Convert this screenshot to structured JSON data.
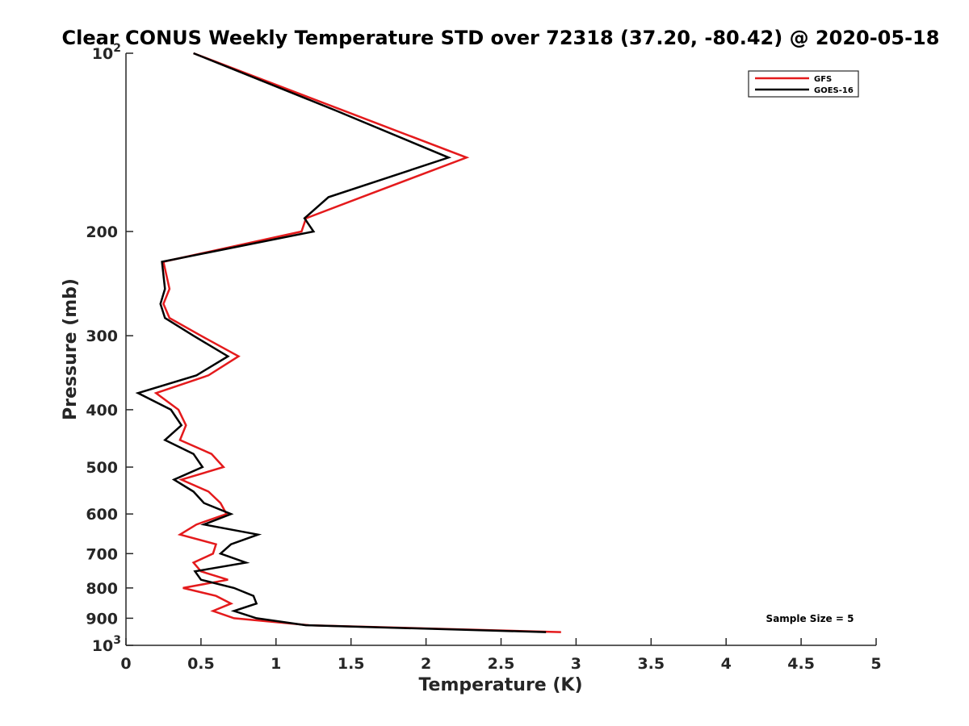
{
  "chart_data": {
    "type": "line",
    "title": "Clear CONUS Weekly Temperature STD over 72318 (37.20, -80.42) @ 2020-05-18",
    "xlabel": "Temperature (K)",
    "ylabel": "Pressure (mb)",
    "xlim": [
      0,
      5
    ],
    "ylim": [
      100,
      1000
    ],
    "y_scale": "log",
    "y_reversed": true,
    "x_ticks": [
      "0",
      "0.5",
      "1",
      "1.5",
      "2",
      "2.5",
      "3",
      "3.5",
      "4",
      "4.5",
      "5"
    ],
    "y_ticks": [
      {
        "value": 100,
        "base": "10",
        "exp": "2",
        "label": ""
      },
      {
        "value": 200,
        "label": "200"
      },
      {
        "value": 300,
        "label": "300"
      },
      {
        "value": 400,
        "label": "400"
      },
      {
        "value": 500,
        "label": "500"
      },
      {
        "value": 600,
        "label": "600"
      },
      {
        "value": 700,
        "label": "700"
      },
      {
        "value": 800,
        "label": "800"
      },
      {
        "value": 900,
        "label": "900"
      },
      {
        "value": 1000,
        "base": "10",
        "exp": "3",
        "label": ""
      }
    ],
    "grid": false,
    "legend_position": "top-right",
    "annotation": "Sample Size = 5",
    "series": [
      {
        "name": "GFS",
        "color": "#e41a1c",
        "points": [
          {
            "x": 0.45,
            "p": 100
          },
          {
            "x": 1.45,
            "p": 125
          },
          {
            "x": 2.27,
            "p": 150
          },
          {
            "x": 1.57,
            "p": 175
          },
          {
            "x": 1.2,
            "p": 190
          },
          {
            "x": 1.17,
            "p": 200
          },
          {
            "x": 0.25,
            "p": 225
          },
          {
            "x": 0.29,
            "p": 250
          },
          {
            "x": 0.25,
            "p": 265
          },
          {
            "x": 0.29,
            "p": 280
          },
          {
            "x": 0.5,
            "p": 300
          },
          {
            "x": 0.75,
            "p": 325
          },
          {
            "x": 0.55,
            "p": 350
          },
          {
            "x": 0.2,
            "p": 375
          },
          {
            "x": 0.35,
            "p": 400
          },
          {
            "x": 0.4,
            "p": 425
          },
          {
            "x": 0.36,
            "p": 450
          },
          {
            "x": 0.57,
            "p": 475
          },
          {
            "x": 0.65,
            "p": 500
          },
          {
            "x": 0.37,
            "p": 525
          },
          {
            "x": 0.55,
            "p": 550
          },
          {
            "x": 0.63,
            "p": 575
          },
          {
            "x": 0.67,
            "p": 600
          },
          {
            "x": 0.47,
            "p": 625
          },
          {
            "x": 0.36,
            "p": 650
          },
          {
            "x": 0.6,
            "p": 675
          },
          {
            "x": 0.58,
            "p": 700
          },
          {
            "x": 0.45,
            "p": 725
          },
          {
            "x": 0.5,
            "p": 750
          },
          {
            "x": 0.68,
            "p": 775
          },
          {
            "x": 0.38,
            "p": 800
          },
          {
            "x": 0.6,
            "p": 825
          },
          {
            "x": 0.7,
            "p": 850
          },
          {
            "x": 0.58,
            "p": 875
          },
          {
            "x": 0.72,
            "p": 900
          },
          {
            "x": 1.22,
            "p": 925
          },
          {
            "x": 2.9,
            "p": 950
          }
        ]
      },
      {
        "name": "GOES-16",
        "color": "#000000",
        "points": [
          {
            "x": 0.45,
            "p": 100
          },
          {
            "x": 1.4,
            "p": 125
          },
          {
            "x": 2.15,
            "p": 150
          },
          {
            "x": 1.35,
            "p": 175
          },
          {
            "x": 1.19,
            "p": 190
          },
          {
            "x": 1.25,
            "p": 200
          },
          {
            "x": 0.24,
            "p": 225
          },
          {
            "x": 0.26,
            "p": 250
          },
          {
            "x": 0.23,
            "p": 265
          },
          {
            "x": 0.26,
            "p": 280
          },
          {
            "x": 0.45,
            "p": 300
          },
          {
            "x": 0.68,
            "p": 325
          },
          {
            "x": 0.47,
            "p": 350
          },
          {
            "x": 0.08,
            "p": 375
          },
          {
            "x": 0.3,
            "p": 400
          },
          {
            "x": 0.37,
            "p": 425
          },
          {
            "x": 0.26,
            "p": 450
          },
          {
            "x": 0.45,
            "p": 475
          },
          {
            "x": 0.51,
            "p": 500
          },
          {
            "x": 0.32,
            "p": 525
          },
          {
            "x": 0.45,
            "p": 550
          },
          {
            "x": 0.52,
            "p": 575
          },
          {
            "x": 0.7,
            "p": 600
          },
          {
            "x": 0.52,
            "p": 625
          },
          {
            "x": 0.88,
            "p": 650
          },
          {
            "x": 0.7,
            "p": 675
          },
          {
            "x": 0.63,
            "p": 700
          },
          {
            "x": 0.8,
            "p": 725
          },
          {
            "x": 0.46,
            "p": 750
          },
          {
            "x": 0.5,
            "p": 775
          },
          {
            "x": 0.72,
            "p": 800
          },
          {
            "x": 0.85,
            "p": 825
          },
          {
            "x": 0.87,
            "p": 850
          },
          {
            "x": 0.72,
            "p": 875
          },
          {
            "x": 0.87,
            "p": 900
          },
          {
            "x": 1.2,
            "p": 925
          },
          {
            "x": 2.8,
            "p": 950
          }
        ]
      }
    ]
  }
}
